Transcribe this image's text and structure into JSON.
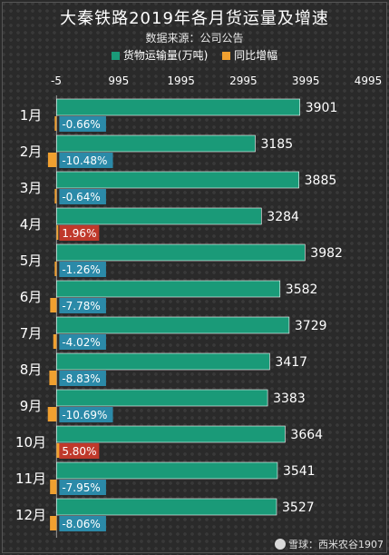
{
  "chart_data": {
    "type": "bar",
    "orientation": "horizontal",
    "title": "大秦铁路2019年各月货运量及增速",
    "subtitle": "数据来源：公司公告",
    "categories": [
      "1月",
      "2月",
      "3月",
      "4月",
      "5月",
      "6月",
      "7月",
      "8月",
      "9月",
      "10月",
      "11月",
      "12月"
    ],
    "series": [
      {
        "name": "货物运输量(万吨)",
        "color": "#1a9a78",
        "values": [
          3901,
          3185,
          3885,
          3284,
          3982,
          3582,
          3729,
          3417,
          3383,
          3664,
          3541,
          3527
        ]
      },
      {
        "name": "同比增幅",
        "color": "#f0a030",
        "values": [
          -0.66,
          -10.48,
          -0.64,
          1.96,
          -1.26,
          -7.78,
          -4.02,
          -8.83,
          -10.69,
          5.8,
          -7.95,
          -8.06
        ],
        "labels": [
          "-0.66%",
          "-10.48%",
          "-0.64%",
          "1.96%",
          "-1.26%",
          "-7.78%",
          "-4.02%",
          "-8.83%",
          "-10.69%",
          "5.80%",
          "-7.95%",
          "-8.06%"
        ]
      }
    ],
    "xlim": [
      -5,
      4995
    ],
    "xticks": [
      "-5",
      "995",
      "1995",
      "2995",
      "3995",
      "4995"
    ],
    "negative_label_bg": "#2b8aa8",
    "positive_label_bg": "#c0392b",
    "legend_position": "top",
    "grid": false
  },
  "footer": {
    "watermark": "雪球：西米农谷1907"
  }
}
